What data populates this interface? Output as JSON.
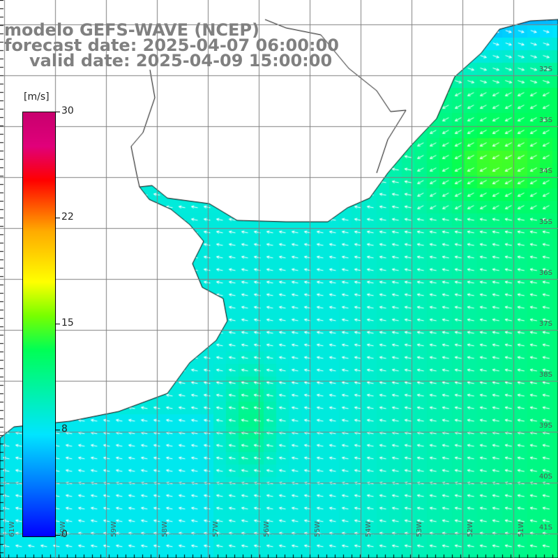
{
  "title": {
    "model": "modelo GEFS-WAVE (NCEP)",
    "forecast": "forecast date: 2025-04-07 06:00:00",
    "valid": "valid date: 2025-04-09 15:00:00"
  },
  "colorbar": {
    "units": "[m/s]",
    "ticks": [
      "30",
      "22",
      "15",
      "8",
      "0"
    ],
    "tick_values": [
      30,
      22,
      15,
      8,
      0
    ],
    "range": [
      0,
      30
    ],
    "colors": [
      "#0000ff",
      "#0077ff",
      "#00e5ff",
      "#00ff55",
      "#77ff00",
      "#ffff00",
      "#ffaa00",
      "#ff0000",
      "#c8006e"
    ]
  },
  "axes": {
    "lat_labels": [
      "32S",
      "33S",
      "34S",
      "35S",
      "36S",
      "37S",
      "38S",
      "39S",
      "40S",
      "41S"
    ],
    "lon_labels": [
      "61W",
      "60W",
      "59W",
      "58W",
      "57W",
      "56W",
      "55W",
      "54W",
      "53W",
      "52W",
      "51W"
    ]
  },
  "colors": {
    "land": "#ffffff",
    "coast": "#000000",
    "grid": "#808080",
    "arrows": "#ffffff",
    "header_text": "#808080"
  }
}
